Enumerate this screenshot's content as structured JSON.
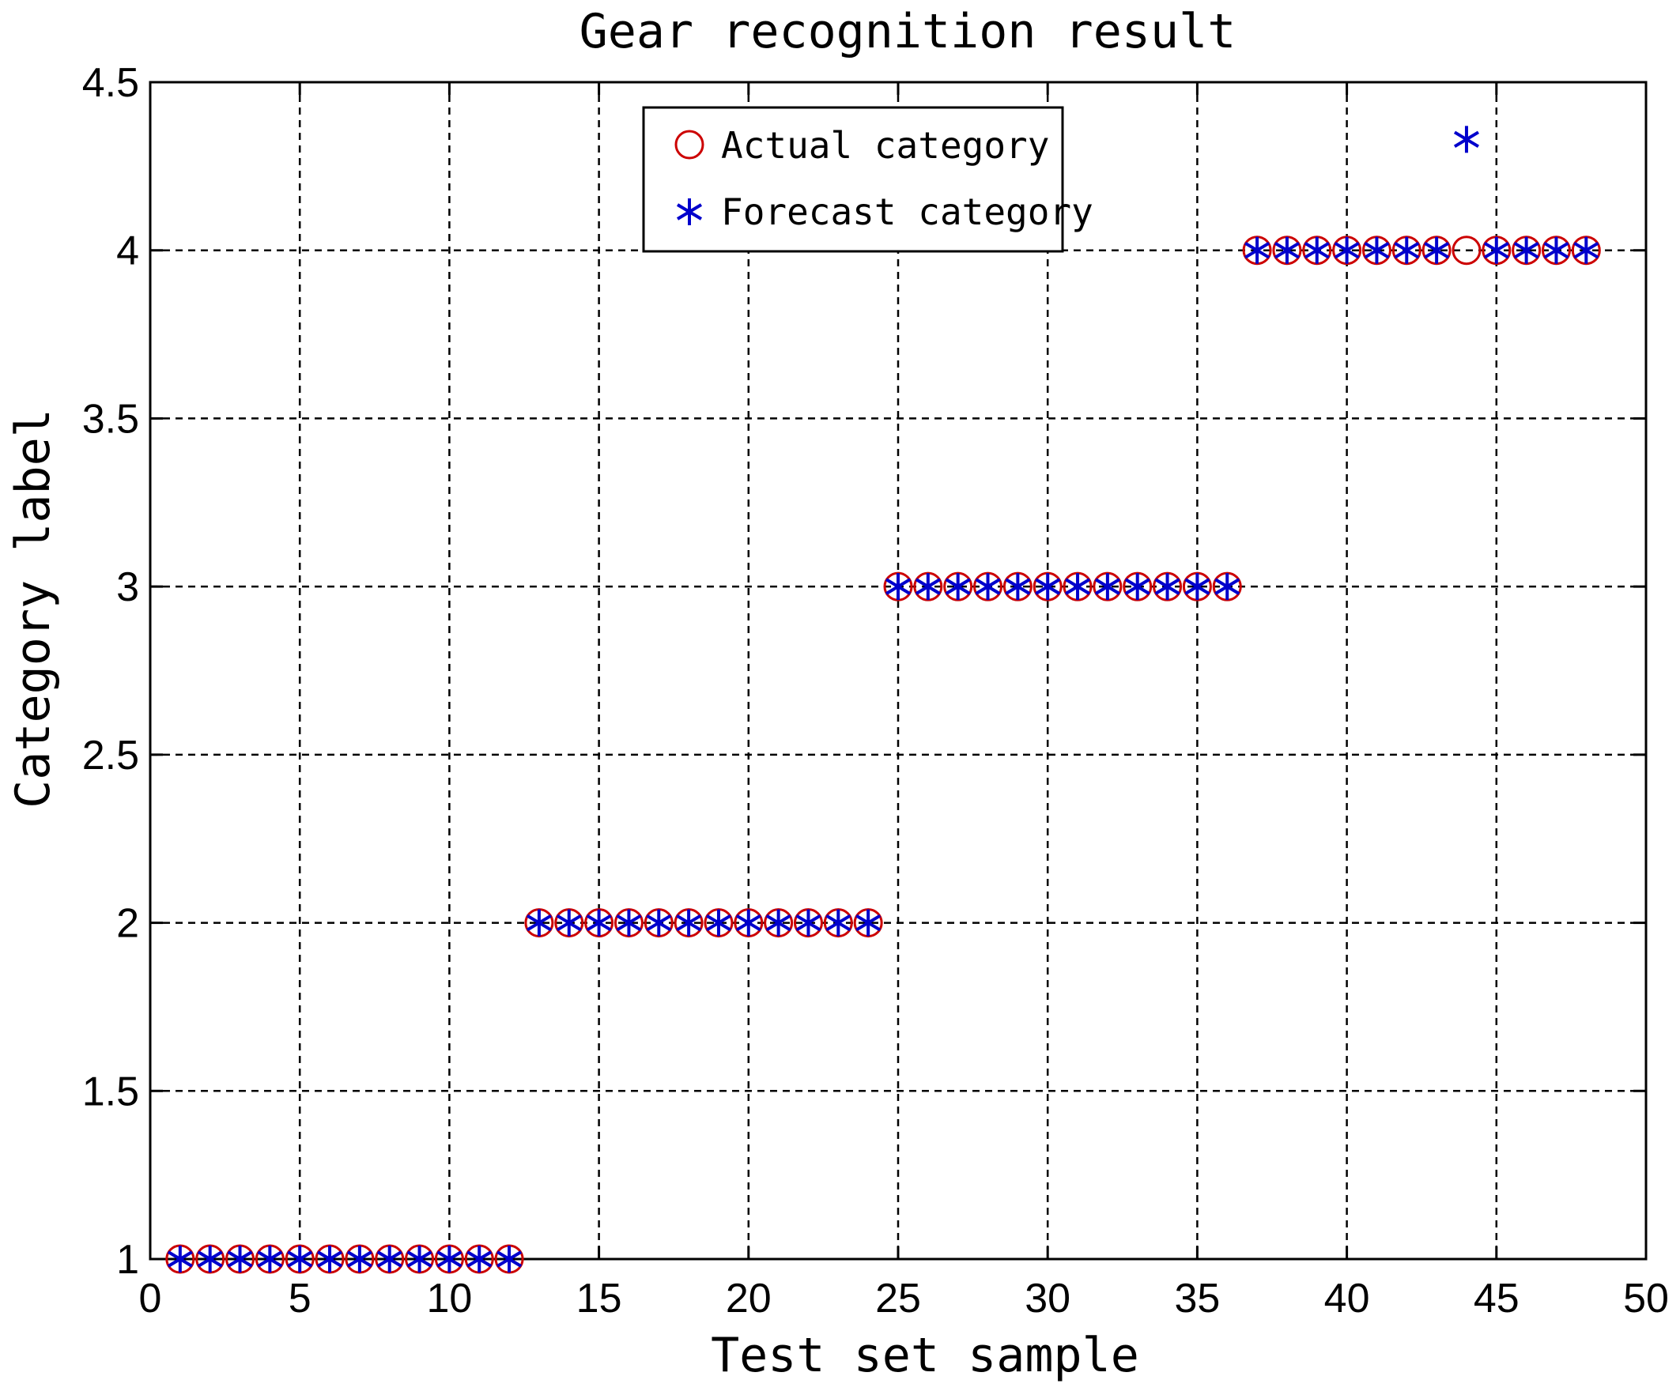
{
  "chart_data": {
    "type": "scatter",
    "title": "Gear recognition result",
    "xlabel": "Test set sample",
    "ylabel": "Category label",
    "xlim": [
      0,
      50
    ],
    "ylim": [
      1,
      4.5
    ],
    "xticks": [
      0,
      5,
      10,
      15,
      20,
      25,
      30,
      35,
      40,
      45,
      50
    ],
    "xtick_labels": [
      "0",
      "5",
      "10",
      "15",
      "20",
      "25",
      "30",
      "35",
      "40",
      "45",
      "50"
    ],
    "yticks": [
      1,
      1.5,
      2,
      2.5,
      3,
      3.5,
      4,
      4.5
    ],
    "ytick_labels": [
      "1",
      "1.5",
      "2",
      "2.5",
      "3",
      "3.5",
      "4",
      "4.5"
    ],
    "grid": true,
    "legend_position": "top-center",
    "series": [
      {
        "name": "Actual category",
        "marker": "circle",
        "color": "#cc0000",
        "x": [
          1,
          2,
          3,
          4,
          5,
          6,
          7,
          8,
          9,
          10,
          11,
          12,
          13,
          14,
          15,
          16,
          17,
          18,
          19,
          20,
          21,
          22,
          23,
          24,
          25,
          26,
          27,
          28,
          29,
          30,
          31,
          32,
          33,
          34,
          35,
          36,
          37,
          38,
          39,
          40,
          41,
          42,
          43,
          44,
          45,
          46,
          47,
          48
        ],
        "y": [
          1,
          1,
          1,
          1,
          1,
          1,
          1,
          1,
          1,
          1,
          1,
          1,
          2,
          2,
          2,
          2,
          2,
          2,
          2,
          2,
          2,
          2,
          2,
          2,
          3,
          3,
          3,
          3,
          3,
          3,
          3,
          3,
          3,
          3,
          3,
          3,
          4,
          4,
          4,
          4,
          4,
          4,
          4,
          4,
          4,
          4,
          4,
          4
        ]
      },
      {
        "name": "Forecast category",
        "marker": "asterisk",
        "color": "#0000cc",
        "x": [
          1,
          2,
          3,
          4,
          5,
          6,
          7,
          8,
          9,
          10,
          11,
          12,
          13,
          14,
          15,
          16,
          17,
          18,
          19,
          20,
          21,
          22,
          23,
          24,
          25,
          26,
          27,
          28,
          29,
          30,
          31,
          32,
          33,
          34,
          35,
          36,
          37,
          38,
          39,
          40,
          41,
          42,
          43,
          44,
          45,
          46,
          47,
          48
        ],
        "y": [
          1,
          1,
          1,
          1,
          1,
          1,
          1,
          1,
          1,
          1,
          1,
          1,
          2,
          2,
          2,
          2,
          2,
          2,
          2,
          2,
          2,
          2,
          2,
          2,
          3,
          3,
          3,
          3,
          3,
          3,
          3,
          3,
          3,
          3,
          3,
          3,
          4,
          4,
          4,
          4,
          4,
          4,
          4,
          4.33,
          4,
          4,
          4,
          4
        ]
      }
    ]
  }
}
